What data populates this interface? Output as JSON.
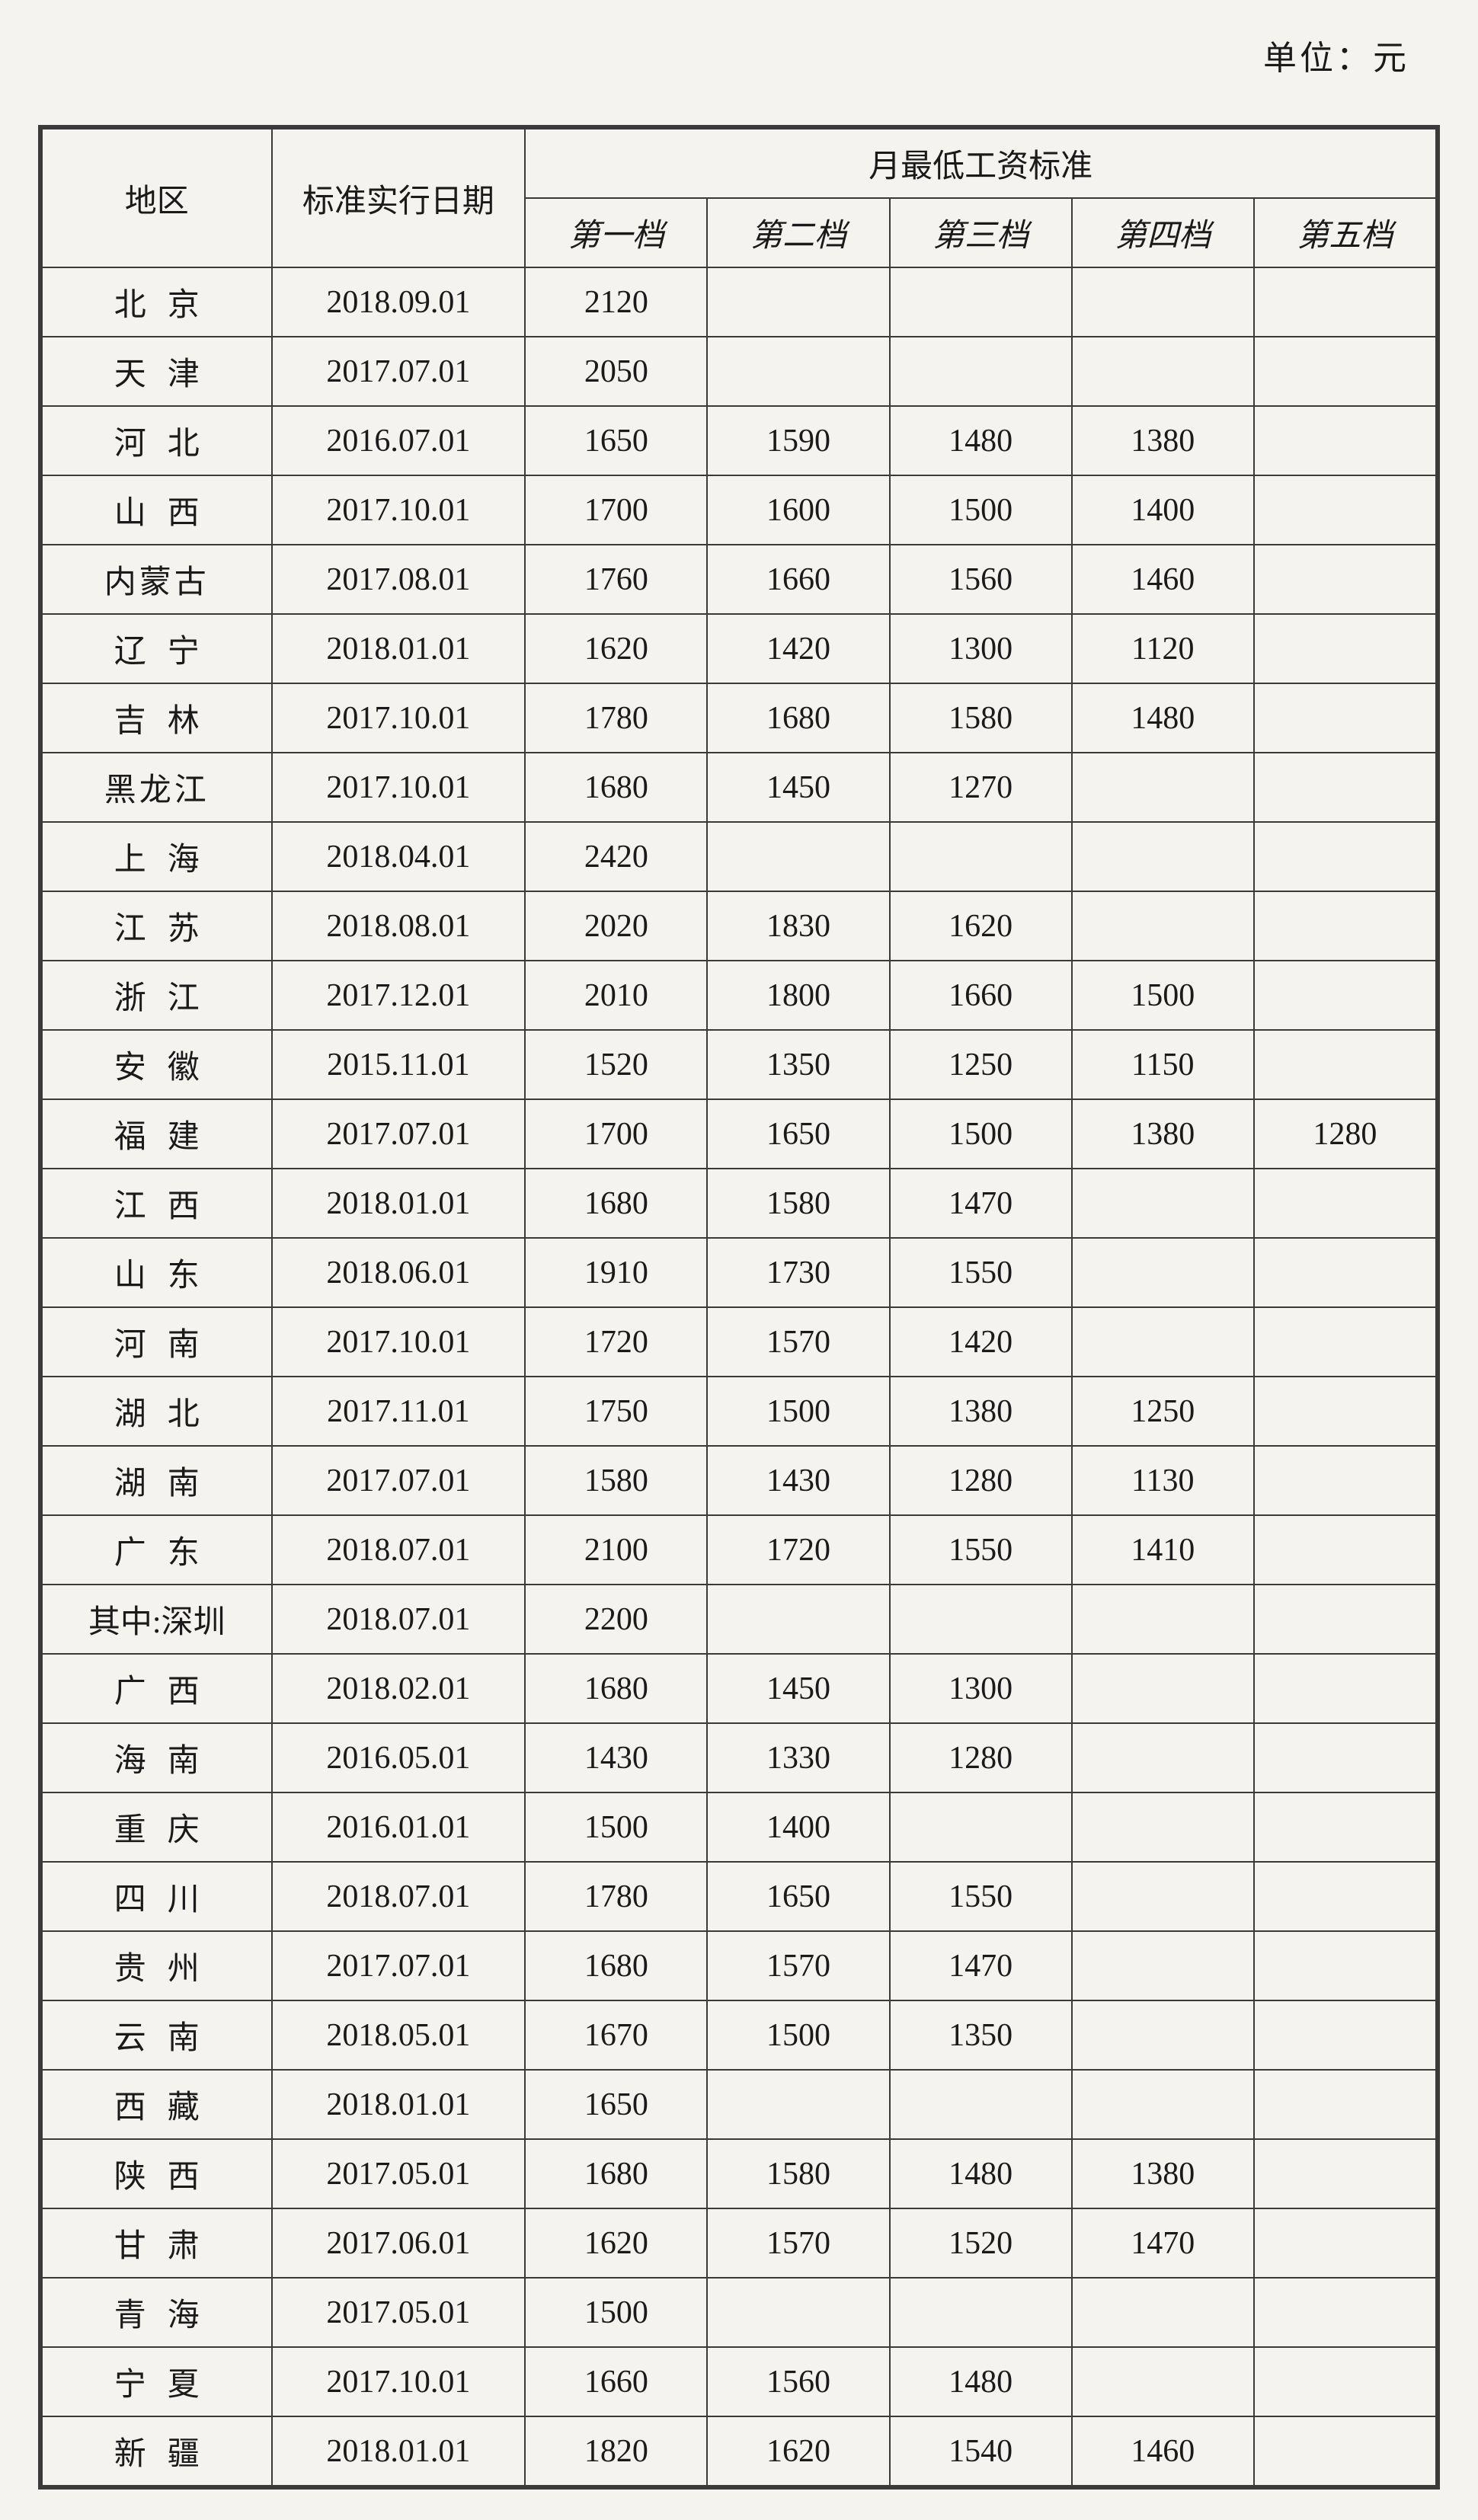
{
  "unit_label": "单位：元",
  "table": {
    "type": "table",
    "background_color": "#f5f3f0",
    "border_color": "#3a3a3a",
    "text_color": "#1a1a1a",
    "font_size_pt": 32,
    "headers": {
      "region": "地区",
      "date": "标准实行日期",
      "wage_group": "月最低工资标准",
      "tier1": "第一档",
      "tier2": "第二档",
      "tier3": "第三档",
      "tier4": "第四档",
      "tier5": "第五档"
    },
    "column_widths": {
      "region": 290,
      "date": 320,
      "tier": 230
    },
    "rows": [
      {
        "region": "北京",
        "region_chars": 2,
        "date": "2018.09.01",
        "t1": "2120",
        "t2": "",
        "t3": "",
        "t4": "",
        "t5": ""
      },
      {
        "region": "天津",
        "region_chars": 2,
        "date": "2017.07.01",
        "t1": "2050",
        "t2": "",
        "t3": "",
        "t4": "",
        "t5": ""
      },
      {
        "region": "河北",
        "region_chars": 2,
        "date": "2016.07.01",
        "t1": "1650",
        "t2": "1590",
        "t3": "1480",
        "t4": "1380",
        "t5": ""
      },
      {
        "region": "山西",
        "region_chars": 2,
        "date": "2017.10.01",
        "t1": "1700",
        "t2": "1600",
        "t3": "1500",
        "t4": "1400",
        "t5": ""
      },
      {
        "region": "内蒙古",
        "region_chars": 3,
        "date": "2017.08.01",
        "t1": "1760",
        "t2": "1660",
        "t3": "1560",
        "t4": "1460",
        "t5": ""
      },
      {
        "region": "辽宁",
        "region_chars": 2,
        "date": "2018.01.01",
        "t1": "1620",
        "t2": "1420",
        "t3": "1300",
        "t4": "1120",
        "t5": ""
      },
      {
        "region": "吉林",
        "region_chars": 2,
        "date": "2017.10.01",
        "t1": "1780",
        "t2": "1680",
        "t3": "1580",
        "t4": "1480",
        "t5": ""
      },
      {
        "region": "黑龙江",
        "region_chars": 3,
        "date": "2017.10.01",
        "t1": "1680",
        "t2": "1450",
        "t3": "1270",
        "t4": "",
        "t5": ""
      },
      {
        "region": "上海",
        "region_chars": 2,
        "date": "2018.04.01",
        "t1": "2420",
        "t2": "",
        "t3": "",
        "t4": "",
        "t5": ""
      },
      {
        "region": "江苏",
        "region_chars": 2,
        "date": "2018.08.01",
        "t1": "2020",
        "t2": "1830",
        "t3": "1620",
        "t4": "",
        "t5": ""
      },
      {
        "region": "浙江",
        "region_chars": 2,
        "date": "2017.12.01",
        "t1": "2010",
        "t2": "1800",
        "t3": "1660",
        "t4": "1500",
        "t5": ""
      },
      {
        "region": "安徽",
        "region_chars": 2,
        "date": "2015.11.01",
        "t1": "1520",
        "t2": "1350",
        "t3": "1250",
        "t4": "1150",
        "t5": ""
      },
      {
        "region": "福建",
        "region_chars": 2,
        "date": "2017.07.01",
        "t1": "1700",
        "t2": "1650",
        "t3": "1500",
        "t4": "1380",
        "t5": "1280"
      },
      {
        "region": "江西",
        "region_chars": 2,
        "date": "2018.01.01",
        "t1": "1680",
        "t2": "1580",
        "t3": "1470",
        "t4": "",
        "t5": ""
      },
      {
        "region": "山东",
        "region_chars": 2,
        "date": "2018.06.01",
        "t1": "1910",
        "t2": "1730",
        "t3": "1550",
        "t4": "",
        "t5": ""
      },
      {
        "region": "河南",
        "region_chars": 2,
        "date": "2017.10.01",
        "t1": "1720",
        "t2": "1570",
        "t3": "1420",
        "t4": "",
        "t5": ""
      },
      {
        "region": "湖北",
        "region_chars": 2,
        "date": "2017.11.01",
        "t1": "1750",
        "t2": "1500",
        "t3": "1380",
        "t4": "1250",
        "t5": ""
      },
      {
        "region": "湖南",
        "region_chars": 2,
        "date": "2017.07.01",
        "t1": "1580",
        "t2": "1430",
        "t3": "1280",
        "t4": "1130",
        "t5": ""
      },
      {
        "region": "广东",
        "region_chars": 2,
        "date": "2018.07.01",
        "t1": "2100",
        "t2": "1720",
        "t3": "1550",
        "t4": "1410",
        "t5": ""
      },
      {
        "region": "其中:深圳",
        "region_chars": 0,
        "date": "2018.07.01",
        "t1": "2200",
        "t2": "",
        "t3": "",
        "t4": "",
        "t5": ""
      },
      {
        "region": "广西",
        "region_chars": 2,
        "date": "2018.02.01",
        "t1": "1680",
        "t2": "1450",
        "t3": "1300",
        "t4": "",
        "t5": ""
      },
      {
        "region": "海南",
        "region_chars": 2,
        "date": "2016.05.01",
        "t1": "1430",
        "t2": "1330",
        "t3": "1280",
        "t4": "",
        "t5": ""
      },
      {
        "region": "重庆",
        "region_chars": 2,
        "date": "2016.01.01",
        "t1": "1500",
        "t2": "1400",
        "t3": "",
        "t4": "",
        "t5": ""
      },
      {
        "region": "四川",
        "region_chars": 2,
        "date": "2018.07.01",
        "t1": "1780",
        "t2": "1650",
        "t3": "1550",
        "t4": "",
        "t5": ""
      },
      {
        "region": "贵州",
        "region_chars": 2,
        "date": "2017.07.01",
        "t1": "1680",
        "t2": "1570",
        "t3": "1470",
        "t4": "",
        "t5": ""
      },
      {
        "region": "云南",
        "region_chars": 2,
        "date": "2018.05.01",
        "t1": "1670",
        "t2": "1500",
        "t3": "1350",
        "t4": "",
        "t5": ""
      },
      {
        "region": "西藏",
        "region_chars": 2,
        "date": "2018.01.01",
        "t1": "1650",
        "t2": "",
        "t3": "",
        "t4": "",
        "t5": ""
      },
      {
        "region": "陕西",
        "region_chars": 2,
        "date": "2017.05.01",
        "t1": "1680",
        "t2": "1580",
        "t3": "1480",
        "t4": "1380",
        "t5": ""
      },
      {
        "region": "甘肃",
        "region_chars": 2,
        "date": "2017.06.01",
        "t1": "1620",
        "t2": "1570",
        "t3": "1520",
        "t4": "1470",
        "t5": ""
      },
      {
        "region": "青海",
        "region_chars": 2,
        "date": "2017.05.01",
        "t1": "1500",
        "t2": "",
        "t3": "",
        "t4": "",
        "t5": ""
      },
      {
        "region": "宁夏",
        "region_chars": 2,
        "date": "2017.10.01",
        "t1": "1660",
        "t2": "1560",
        "t3": "1480",
        "t4": "",
        "t5": ""
      },
      {
        "region": "新疆",
        "region_chars": 2,
        "date": "2018.01.01",
        "t1": "1820",
        "t2": "1620",
        "t3": "1540",
        "t4": "1460",
        "t5": ""
      }
    ]
  }
}
